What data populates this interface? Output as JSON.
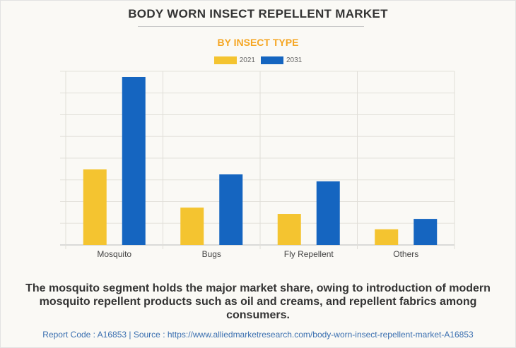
{
  "chart_data": {
    "type": "bar",
    "title": "BODY WORN INSECT REPELLENT MARKET",
    "subtitle": "BY INSECT TYPE",
    "categories": [
      "Mosquito",
      "Bugs",
      "Fly Repellent",
      "Others"
    ],
    "series": [
      {
        "name": "2021",
        "color": "#f4c430",
        "values": [
          3.48,
          1.72,
          1.43,
          0.72
        ]
      },
      {
        "name": "2031",
        "color": "#1565c0",
        "values": [
          7.74,
          3.25,
          2.93,
          1.2
        ]
      }
    ],
    "ylim": [
      0,
      8
    ],
    "y_gridlines": 8,
    "y_tick_labels_shown": false,
    "grid": true,
    "legend_position": "top-center",
    "xlabel": "",
    "ylabel": ""
  },
  "caption": "The mosquito segment holds the major market share, owing to introduction of modern mosquito repellent products such as oil and creams, and repellent fabrics among consumers.",
  "footer": "Report Code : A16853  |  Source : https://www.alliedmarketresearch.com/body-worn-insect-repellent-market-A16853"
}
